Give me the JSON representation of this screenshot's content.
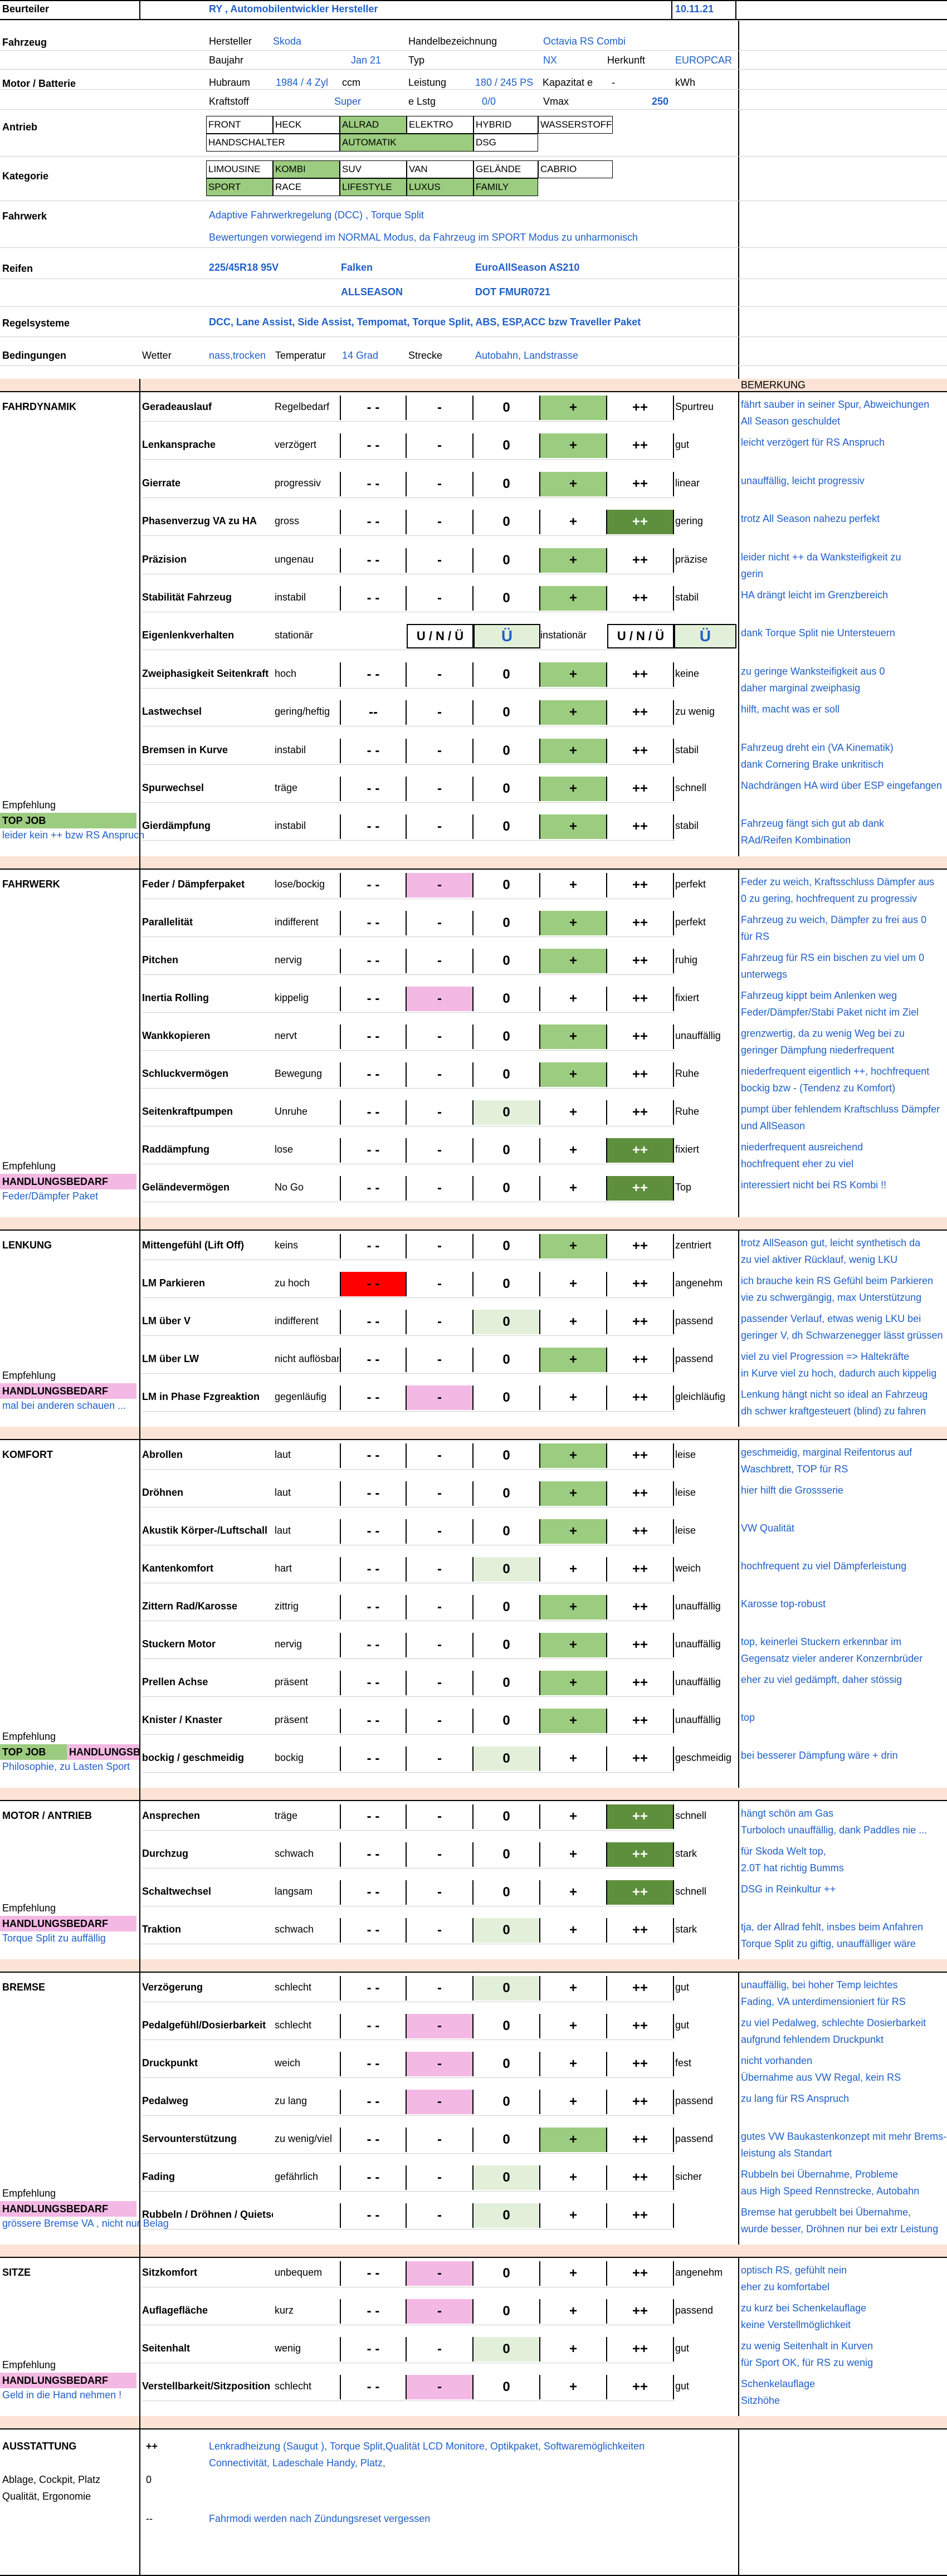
{
  "header": {
    "beurteiler_label": "Beurteiler",
    "beurteiler_value": "RY , Automobilentwickler Hersteller",
    "date": "10.11.21"
  },
  "fahrzeug": {
    "section": "Fahrzeug",
    "hersteller_label": "Hersteller",
    "hersteller": "Skoda",
    "handel_label": "Handelbezeichnung",
    "handel": "Octavia RS Combi",
    "baujahr_label": "Baujahr",
    "baujahr": "Jan 21",
    "typ_label": "Typ",
    "typ": "NX",
    "herkunft_label": "Herkunft",
    "herkunft": "EUROPCAR"
  },
  "motor": {
    "section": "Motor / Batterie",
    "hubraum_label": "Hubraum",
    "hubraum": "1984 / 4 Zyl",
    "ccm": "ccm",
    "leistung_label": "Leistung",
    "leistung": "180 / 245 PS",
    "kapazitaet": "Kapazitat e",
    "dash": "-",
    "kwh": "kWh",
    "kraftstoff_label": "Kraftstoff",
    "kraftstoff": "Super",
    "elstg_label": "e Lstg",
    "elstg": "0/0",
    "vmax_label": "Vmax",
    "vmax": "250"
  },
  "antrieb": {
    "section": "Antrieb",
    "row1": [
      "FRONT",
      "HECK",
      "ALLRAD",
      "ELEKTRO",
      "HYBRID",
      "WASSERSTOFF"
    ],
    "row2": [
      "HANDSCHALTER",
      "AUTOMATIK",
      "DSG"
    ]
  },
  "kategorie": {
    "section": "Kategorie",
    "row1": [
      "LIMOUSINE",
      "KOMBI",
      "SUV",
      "VAN",
      "GELÄNDE",
      "CABRIO"
    ],
    "row2": [
      "SPORT",
      "RACE",
      "LIFESTYLE",
      "LUXUS",
      "FAMILY"
    ]
  },
  "fahrwerk_info": {
    "section": "Fahrwerk",
    "line1": "Adaptive Fahrwerkregelung (DCC) , Torque Split",
    "line2": "Bewertungen vorwiegend im NORMAL Modus, da Fahrzeug im SPORT Modus zu unharmonisch"
  },
  "reifen": {
    "section": "Reifen",
    "size": "225/45R18 95V",
    "brand": "Falken",
    "model": "EuroAllSeason AS210",
    "season": "ALLSEASON",
    "dot": "DOT FMUR0721"
  },
  "regelsysteme": {
    "section": "Regelsysteme",
    "value": "DCC, Lane Assist, Side Assist, Tempomat, Torque Split, ABS, ESP,ACC bzw Traveller Paket"
  },
  "bedingungen": {
    "section": "Bedingungen",
    "wetter_label": "Wetter",
    "wetter": "nass,trocken",
    "temp_label": "Temperatur",
    "temp": "14 Grad",
    "strecke_label": "Strecke",
    "strecke": "Autobahn, Landstrasse"
  },
  "scale": [
    "- -",
    "-",
    "0",
    "+",
    "++"
  ],
  "bemerkung_label": "BEMERKUNG",
  "empfehlung_label": "Empfehlung",
  "sections": [
    {
      "title": "FAHRDYNAMIK",
      "rows": [
        {
          "name": "Geradeauslauf",
          "neg": "Regelbedarf",
          "pos": "Spurtreu",
          "sel": 3,
          "tone": "g1",
          "remarks": [
            "fährt sauber in seiner Spur, Abweichungen",
            "All Season geschuldet"
          ]
        },
        {
          "name": "Lenkansprache",
          "neg": "verzögert",
          "pos": "gut",
          "sel": 3,
          "tone": "g1",
          "remarks": [
            "leicht verzögert für RS Anspruch"
          ]
        },
        {
          "name": "Gierrate",
          "neg": "progressiv",
          "pos": "linear",
          "sel": 3,
          "tone": "g1",
          "remarks": [
            "unauffällig, leicht progressiv"
          ]
        },
        {
          "name": "Phasenverzug VA zu HA",
          "neg": "gross",
          "pos": "gering",
          "sel": 4,
          "tone": "g2",
          "remarks": [
            "trotz All Season nahezu perfekt"
          ]
        },
        {
          "name": "Präzision",
          "neg": "ungenau",
          "pos": "präzise",
          "sel": 3,
          "tone": "g1",
          "remarks": [
            "leider nicht ++ da Wanksteifigkeit zu",
            "gerin"
          ]
        },
        {
          "name": "Stabilität Fahrzeug",
          "neg": "instabil",
          "pos": "stabil",
          "sel": 3,
          "tone": "g1",
          "remarks": [
            "HA drängt leicht  im Grenzbereich"
          ]
        },
        {
          "name": "Eigenlenkverhalten",
          "special": true,
          "left": "stationär",
          "leftbox": "U / N / Ü",
          "leftsel": "Ü",
          "right": "instationär",
          "rightbox": "U / N / Ü",
          "rightsel": "Ü",
          "remarks": [
            "dank Torque Split nie Untersteuern"
          ]
        },
        {
          "name": "Zweiphasigkeit Seitenkraft",
          "neg": "hoch",
          "pos": "keine",
          "sel": 3,
          "tone": "g1",
          "remarks": [
            "zu geringe Wanksteifigkeit aus 0",
            "daher marginal zweiphasig"
          ]
        },
        {
          "name": "Lastwechsel",
          "neg": "gering/heftig",
          "pos": "zu wenig",
          "sel": 3,
          "tone": "g1",
          "altneg": "--",
          "remarks": [
            "hilft, macht was er soll"
          ]
        },
        {
          "name": "Bremsen in Kurve",
          "neg": "instabil",
          "pos": "stabil",
          "sel": 3,
          "tone": "g1",
          "remarks": [
            "Fahrzeug dreht ein (VA Kinematik)",
            "dank Cornering Brake unkritisch"
          ]
        },
        {
          "name": "Spurwechsel",
          "neg": "träge",
          "pos": "schnell",
          "sel": 3,
          "tone": "g1",
          "remarks": [
            "Nachdrängen HA wird über ESP eingefangen"
          ]
        },
        {
          "name": "Gierdämpfung",
          "neg": "instabil",
          "pos": "stabil",
          "sel": 3,
          "tone": "g1",
          "remarks": [
            "Fahrzeug fängt sich gut ab dank",
            "RAd/Reifen Kombination"
          ]
        }
      ],
      "tags": [
        "TOP JOB"
      ],
      "footer": "leider kein ++ bzw RS Anspruch"
    },
    {
      "title": "FAHRWERK",
      "rows": [
        {
          "name": "Feder / Dämpferpaket",
          "neg": "lose/bockig",
          "pos": "perfekt",
          "sel": 1,
          "tone": "pk",
          "remarks": [
            "Feder zu weich, Kraftsschluss Dämpfer aus",
            "0 zu gering, hochfrequent zu progressiv"
          ]
        },
        {
          "name": "Parallelität",
          "neg": "indifferent",
          "pos": "perfekt",
          "sel": 3,
          "tone": "g1",
          "remarks": [
            "Fahrzeug zu weich, Dämpfer zu frei aus 0",
            "für RS"
          ]
        },
        {
          "name": "Pitchen",
          "neg": "nervig",
          "pos": "ruhig",
          "sel": 3,
          "tone": "g1",
          "remarks": [
            "Fahrzeug für RS ein bischen zu viel um 0",
            "unterwegs"
          ]
        },
        {
          "name": "Inertia Rolling",
          "neg": "kippelig",
          "pos": "fixiert",
          "sel": 1,
          "tone": "pk",
          "remarks": [
            "Fahrzeug kippt beim Anlenken weg",
            "Feder/Dämpfer/Stabi Paket nicht im Ziel"
          ]
        },
        {
          "name": "Wankkopieren",
          "neg": "nervt",
          "pos": "unauffällig",
          "sel": 3,
          "tone": "g1",
          "remarks": [
            "grenzwertig, da zu wenig Weg bei zu",
            "geringer Dämpfung niederfrequent"
          ]
        },
        {
          "name": "Schluckvermögen",
          "neg": "Bewegung",
          "pos": "Ruhe",
          "sel": 3,
          "tone": "g1",
          "remarks": [
            "niederfrequent eigentlich ++, hochfrequent",
            "bockig bzw - (Tendenz zu Komfort)"
          ]
        },
        {
          "name": "Seitenkraftpumpen",
          "neg": "Unruhe",
          "pos": "Ruhe",
          "sel": 2,
          "tone": "g0",
          "remarks": [
            "pumpt über fehlendem Kraftschluss Dämpfer",
            "und AllSeason"
          ]
        },
        {
          "name": "Raddämpfung",
          "neg": "lose",
          "pos": "fixiert",
          "sel": 4,
          "tone": "g2",
          "remarks": [
            "niederfrequent ausreichend",
            "hochfrequent eher zu viel"
          ]
        },
        {
          "name": "Geländevermögen",
          "neg": "No Go",
          "pos": "Top",
          "sel": 4,
          "tone": "g2",
          "remarks": [
            "interessiert nicht bei RS Kombi !!"
          ]
        }
      ],
      "tags": [
        "HANDLUNGSBEDARF"
      ],
      "footer": "Feder/Dämpfer Paket"
    },
    {
      "title": "LENKUNG",
      "rows": [
        {
          "name": "Mittengefühl (Lift Off)",
          "neg": "keins",
          "pos": "zentriert",
          "sel": 3,
          "tone": "g1",
          "remarks": [
            "trotz AllSeason gut, leicht synthetisch da",
            "zu viel aktiver Rücklauf, wenig LKU"
          ]
        },
        {
          "name": "LM Parkieren",
          "neg": "zu hoch",
          "pos": "angenehm",
          "sel": 0,
          "tone": "rd",
          "remarks": [
            "ich brauche kein RS Gefühl beim Parkieren",
            "vie zu schwergängig, max Unterstützung"
          ]
        },
        {
          "name": "LM über V",
          "neg": "indifferent",
          "pos": "passend",
          "sel": 2,
          "tone": "g0",
          "remarks": [
            "passender Verlauf, etwas wenig LKU bei",
            "geringer V, dh Schwarzenegger lässt grüssen"
          ]
        },
        {
          "name": "LM über LW",
          "neg": "nicht auflösbar",
          "pos": "passend",
          "sel": 3,
          "tone": "g1",
          "remarks": [
            "viel zu viel Progression => Haltekräfte",
            "in Kurve viel zu hoch, dadurch auch kippelig"
          ]
        },
        {
          "name": "LM in Phase Fzgreaktion",
          "neg": "gegenläufig",
          "pos": "gleichläufig",
          "sel": 1,
          "tone": "pk",
          "remarks": [
            "Lenkung hängt nicht so ideal an Fahrzeug",
            "dh schwer kraftgesteuert (blind) zu fahren"
          ]
        }
      ],
      "tags": [
        "HANDLUNGSBEDARF"
      ],
      "footer": "mal bei anderen schauen ..."
    },
    {
      "title": "KOMFORT",
      "rows": [
        {
          "name": "Abrollen",
          "neg": "laut",
          "pos": "leise",
          "sel": 3,
          "tone": "g1",
          "remarks": [
            "geschmeidig, marginal Reifentorus auf",
            "Waschbrett, TOP für RS"
          ]
        },
        {
          "name": "Dröhnen",
          "neg": "laut",
          "pos": "leise",
          "sel": 3,
          "tone": "g1",
          "remarks": [
            "hier hilft die Grossserie"
          ]
        },
        {
          "name": "Akustik Körper-/Luftschall",
          "neg": "laut",
          "pos": "leise",
          "sel": 3,
          "tone": "g1",
          "remarks": [
            "VW Qualität"
          ]
        },
        {
          "name": "Kantenkomfort",
          "neg": "hart",
          "pos": "weich",
          "sel": 2,
          "tone": "g0",
          "remarks": [
            "hochfrequent zu viel Dämpferleistung"
          ]
        },
        {
          "name": "Zittern Rad/Karosse",
          "neg": "zittrig",
          "pos": "unauffällig",
          "sel": 3,
          "tone": "g1",
          "remarks": [
            "Karosse top-robust"
          ]
        },
        {
          "name": "Stuckern Motor",
          "neg": "nervig",
          "pos": "unauffällig",
          "sel": 3,
          "tone": "g1",
          "remarks": [
            "top, keinerlei Stuckern erkennbar im",
            "Gegensatz vieler anderer Konzernbrüder"
          ]
        },
        {
          "name": "Prellen Achse",
          "neg": "präsent",
          "pos": "unauffällig",
          "sel": 3,
          "tone": "g1",
          "remarks": [
            "eher zu viel gedämpft, daher stössig"
          ]
        },
        {
          "name": "Knister / Knaster",
          "neg": "präsent",
          "pos": "unauffällig",
          "sel": 3,
          "tone": "g1",
          "remarks": [
            "top"
          ]
        },
        {
          "name": "bockig / geschmeidig",
          "neg": "bockig",
          "pos": "geschmeidig",
          "sel": 2,
          "tone": "g0",
          "remarks": [
            "bei besserer Dämpfung wäre + drin"
          ]
        }
      ],
      "tags": [
        "TOP JOB",
        "HANDLUNGSBEDARF"
      ],
      "footer": "Philosophie, zu Lasten Sport"
    },
    {
      "title": "MOTOR / ANTRIEB",
      "rows": [
        {
          "name": "Ansprechen",
          "neg": "träge",
          "pos": "schnell",
          "sel": 4,
          "tone": "g2",
          "remarks": [
            "hängt schön am Gas",
            "Turboloch unauffällig, dank Paddles nie ..."
          ]
        },
        {
          "name": "Durchzug",
          "neg": "schwach",
          "pos": "stark",
          "sel": 4,
          "tone": "g2",
          "remarks": [
            "für Skoda Welt top,",
            "2.0T hat richtig Bumms"
          ]
        },
        {
          "name": "Schaltwechsel",
          "neg": "langsam",
          "pos": "schnell",
          "sel": 4,
          "tone": "g2",
          "remarks": [
            "DSG in Reinkultur ++"
          ]
        },
        {
          "name": "Traktion",
          "neg": "schwach",
          "pos": "stark",
          "sel": 2,
          "tone": "g0",
          "remarks": [
            "tja, der Allrad fehlt, insbes beim Anfahren",
            "Torque Split zu giftig, unauffälliger wäre"
          ]
        }
      ],
      "tags": [
        "HANDLUNGSBEDARF"
      ],
      "footer": "Torque Split zu auffällig"
    },
    {
      "title": "BREMSE",
      "rows": [
        {
          "name": "Verzögerung",
          "neg": "schlecht",
          "pos": "gut",
          "sel": 2,
          "tone": "g0",
          "remarks": [
            "unauffällig, bei hoher Temp leichtes",
            "Fading, VA unterdimensioniert für RS"
          ]
        },
        {
          "name": "Pedalgefühl/Dosierbarkeit",
          "neg": "schlecht",
          "pos": "gut",
          "sel": 1,
          "tone": "pk",
          "remarks": [
            "zu viel Pedalweg, schlechte Dosierbarkeit",
            "aufgrund fehlendem Druckpunkt"
          ]
        },
        {
          "name": "Druckpunkt",
          "neg": "weich",
          "pos": "fest",
          "sel": 1,
          "tone": "pk",
          "remarks": [
            "nicht vorhanden",
            "Übernahme aus VW Regal, kein RS"
          ]
        },
        {
          "name": "Pedalweg",
          "neg": "zu lang",
          "pos": "passend",
          "sel": 1,
          "tone": "pk",
          "remarks": [
            "zu lang für RS Anspruch"
          ]
        },
        {
          "name": "Servounterstützung",
          "neg": "zu wenig/viel",
          "pos": "passend",
          "sel": 3,
          "tone": "g1",
          "remarks": [
            "gutes VW Baukastenkonzept mit mehr Brems-",
            "leistung als Standart"
          ]
        },
        {
          "name": "Fading",
          "neg": "gefährlich",
          "pos": "sicher",
          "sel": 2,
          "tone": "g0",
          "remarks": [
            "Rubbeln bei Übernahme, Probleme",
            "aus High Speed Rennstrecke, Autobahn"
          ]
        },
        {
          "name": "Rubbeln / Dröhnen / Quietschen",
          "neg": "",
          "pos": "",
          "sel": 2,
          "tone": "g0",
          "remarks": [
            "Bremse hat gerubbelt bei Übernahme,",
            "wurde besser, Dröhnen nur bei extr Leistung"
          ]
        }
      ],
      "tags": [
        "HANDLUNGSBEDARF"
      ],
      "footer": "grössere Bremse VA , nicht nur Belag"
    },
    {
      "title": "SITZE",
      "rows": [
        {
          "name": "Sitzkomfort",
          "neg": "unbequem",
          "pos": "angenehm",
          "sel": 1,
          "tone": "pk",
          "remarks": [
            "optisch RS, gefühlt nein",
            "eher zu komfortabel"
          ]
        },
        {
          "name": "Auflagefläche",
          "neg": "kurz",
          "pos": "passend",
          "sel": 1,
          "tone": "pk",
          "remarks": [
            "zu kurz bei Schenkelauflage",
            "keine Verstellmöglichkeit"
          ]
        },
        {
          "name": "Seitenhalt",
          "neg": "wenig",
          "pos": "gut",
          "sel": 2,
          "tone": "g0",
          "remarks": [
            "zu wenig Seitenhalt in Kurven",
            "für Sport OK, für RS zu wenig"
          ]
        },
        {
          "name": "Verstellbarkeit/Sitzposition",
          "neg": "schlecht",
          "pos": "gut",
          "sel": 1,
          "tone": "pk",
          "remarks": [
            "Schenkelauflage",
            "Sitzhöhe"
          ]
        }
      ],
      "tags": [
        "HANDLUNGSBEDARF"
      ],
      "footer": "Geld in die Hand nehmen !"
    }
  ],
  "ausstattung": {
    "title": "AUSSTATTUNG",
    "plus": "++",
    "plus_text1": "Lenkradheizung (Saugut ), Torque Split,Qualität LCD Monitore, Optikpaket, Softwaremöglichkeiten",
    "plus_text2": "Connectivität, Ladeschale Handy, Platz,",
    "sub1": "Ablage, Cockpit, Platz",
    "zero": "0",
    "sub2": "Qualität, Ergonomie",
    "minus": "--",
    "minus_text": "Fahrmodi werden nach Zündungsreset vergessen"
  }
}
